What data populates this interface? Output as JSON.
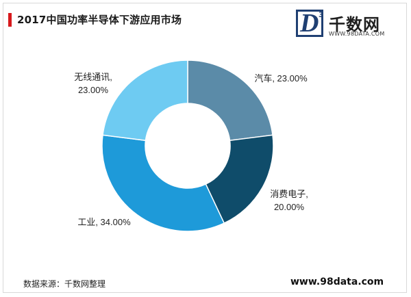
{
  "header": {
    "title": "2017中国功率半导体下游应用市场"
  },
  "logo": {
    "letter": "D",
    "superscript": "3",
    "name": "千数网",
    "url": "WWW.98DATA.COM"
  },
  "footer": {
    "source": "数据来源：千数网整理",
    "website": "www.98data.com"
  },
  "chart_data": {
    "type": "pie",
    "donut": true,
    "start_angle_deg": 0,
    "direction": "clockwise",
    "slices": [
      {
        "name": "汽车",
        "value": 23.0,
        "label_lines": [
          "汽车, 23.00%"
        ],
        "color": "#5b8ba8"
      },
      {
        "name": "消费电子",
        "value": 20.0,
        "label_lines": [
          "消费电子,",
          "20.00%"
        ],
        "color": "#0f4c6a"
      },
      {
        "name": "工业",
        "value": 34.0,
        "label_lines": [
          "工业, 34.00%"
        ],
        "color": "#1e9ad9"
      },
      {
        "name": "无线通讯",
        "value": 23.0,
        "label_lines": [
          "无线通讯,",
          "23.00%"
        ],
        "color": "#6ecbf2"
      }
    ],
    "legend": "none"
  },
  "colors": {
    "accent": "#d7191c",
    "logo": "#1f3f72"
  }
}
